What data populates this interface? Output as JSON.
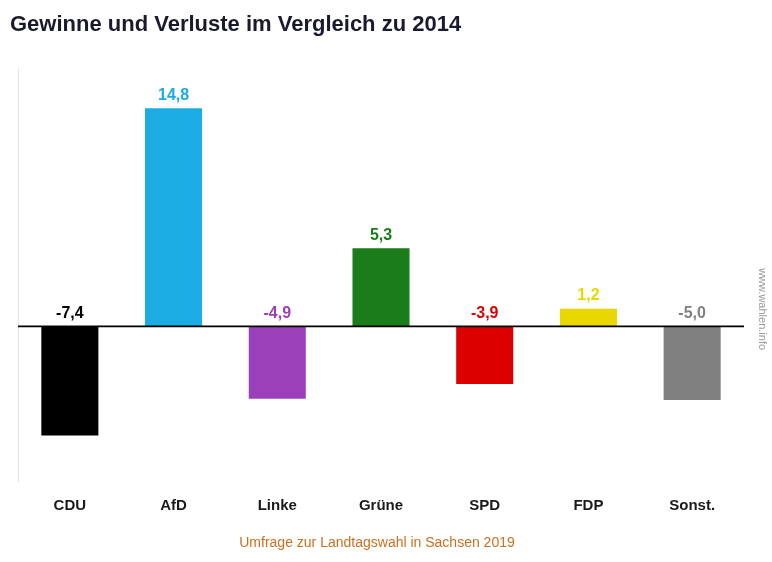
{
  "chart_data": {
    "type": "bar",
    "title": "Gewinne und Verluste im Vergleich zu 2014",
    "subtitle": "Umfrage zur Landtagswahl in Sachsen 2019",
    "annotations": [
      "www.wahlen.info"
    ],
    "categories": [
      "CDU",
      "AfD",
      "Linke",
      "Grüne",
      "SPD",
      "FDP",
      "Sonst."
    ],
    "values": [
      -7.4,
      14.8,
      -4.9,
      5.3,
      -3.9,
      1.2,
      -5.0
    ],
    "value_labels": [
      "-7,4",
      "14,8",
      "-4,9",
      "5,3",
      "-3,9",
      "1,2",
      "-5,0"
    ],
    "colors": [
      "#000000",
      "#1aace3",
      "#9b3fbb",
      "#1a7c1a",
      "#dd0000",
      "#e8d800",
      "#808080"
    ],
    "data_labels": true,
    "ylim": [
      -10.5,
      17.5
    ],
    "yticks": [],
    "tick_labels": "x",
    "grid": false
  }
}
